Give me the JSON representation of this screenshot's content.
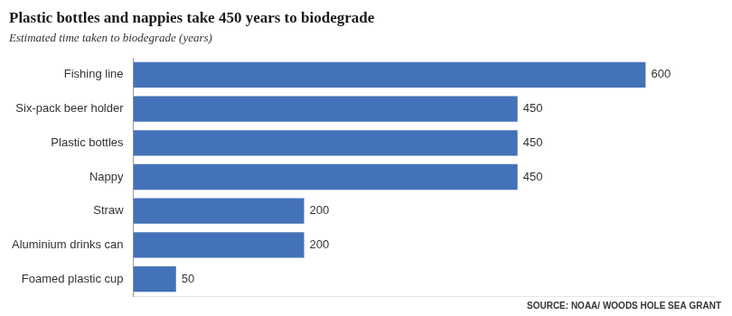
{
  "chart_data": {
    "type": "bar",
    "orientation": "horizontal",
    "title": "Plastic bottles and nappies take 450 years to biodegrade",
    "subtitle": "Estimated time taken to biodegrade (years)",
    "categories": [
      "Fishing line",
      "Six-pack beer holder",
      "Plastic bottles",
      "Nappy",
      "Straw",
      "Aluminium drinks can",
      "Foamed plastic cup"
    ],
    "values": [
      600,
      450,
      450,
      450,
      200,
      200,
      50
    ],
    "color": "#4472b8",
    "xlim": [
      0,
      680
    ],
    "data_labels": true,
    "tick_labels": "y",
    "grid": false,
    "annotations": [
      "SOURCE: NOAA/ WOODS HOLE SEA GRANT"
    ]
  }
}
